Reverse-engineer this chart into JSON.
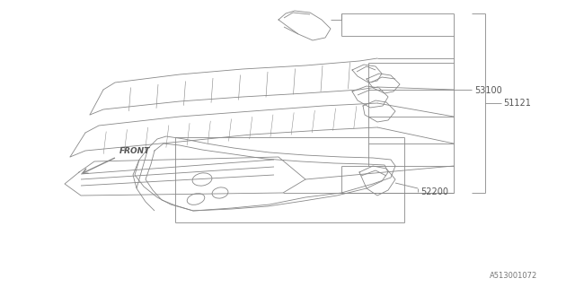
{
  "bg_color": "#ffffff",
  "line_color": "#888888",
  "text_color": "#555555",
  "fig_width": 6.4,
  "fig_height": 3.2,
  "dpi": 100
}
